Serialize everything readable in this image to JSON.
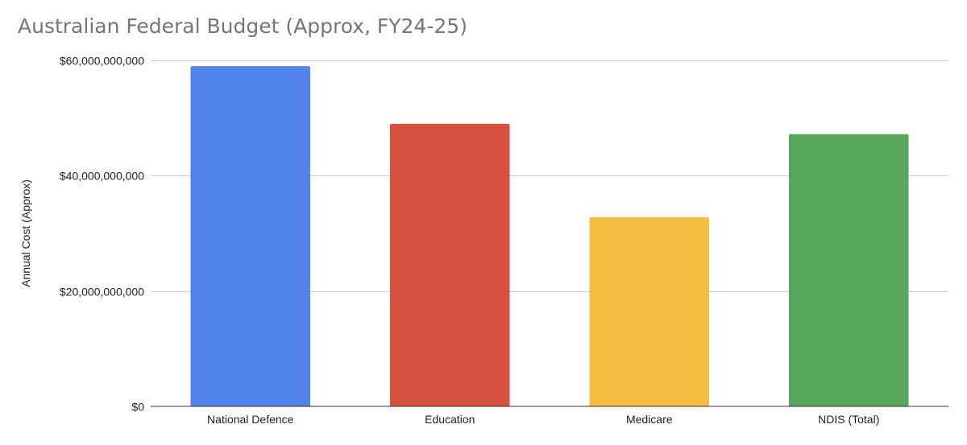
{
  "chart_data": {
    "type": "bar",
    "title": "Australian Federal Budget (Approx, FY24-25)",
    "xlabel": "",
    "ylabel": "Annual Cost (Approx)",
    "categories": [
      "National Defence",
      "Education",
      "Medicare",
      "NDIS (Total)"
    ],
    "values": [
      59000000000,
      49000000000,
      32800000000,
      47200000000
    ],
    "colors": [
      "#5384ee",
      "#d85140",
      "#f1be42",
      "#58a65c"
    ],
    "ylim": [
      0,
      60000000000
    ],
    "yticks": [
      0,
      20000000000,
      40000000000,
      60000000000
    ],
    "ytick_labels": [
      "$0",
      "$20,000,000,000",
      "$40,000,000,000",
      "$60,000,000,000"
    ],
    "grid": true,
    "legend": "none"
  }
}
